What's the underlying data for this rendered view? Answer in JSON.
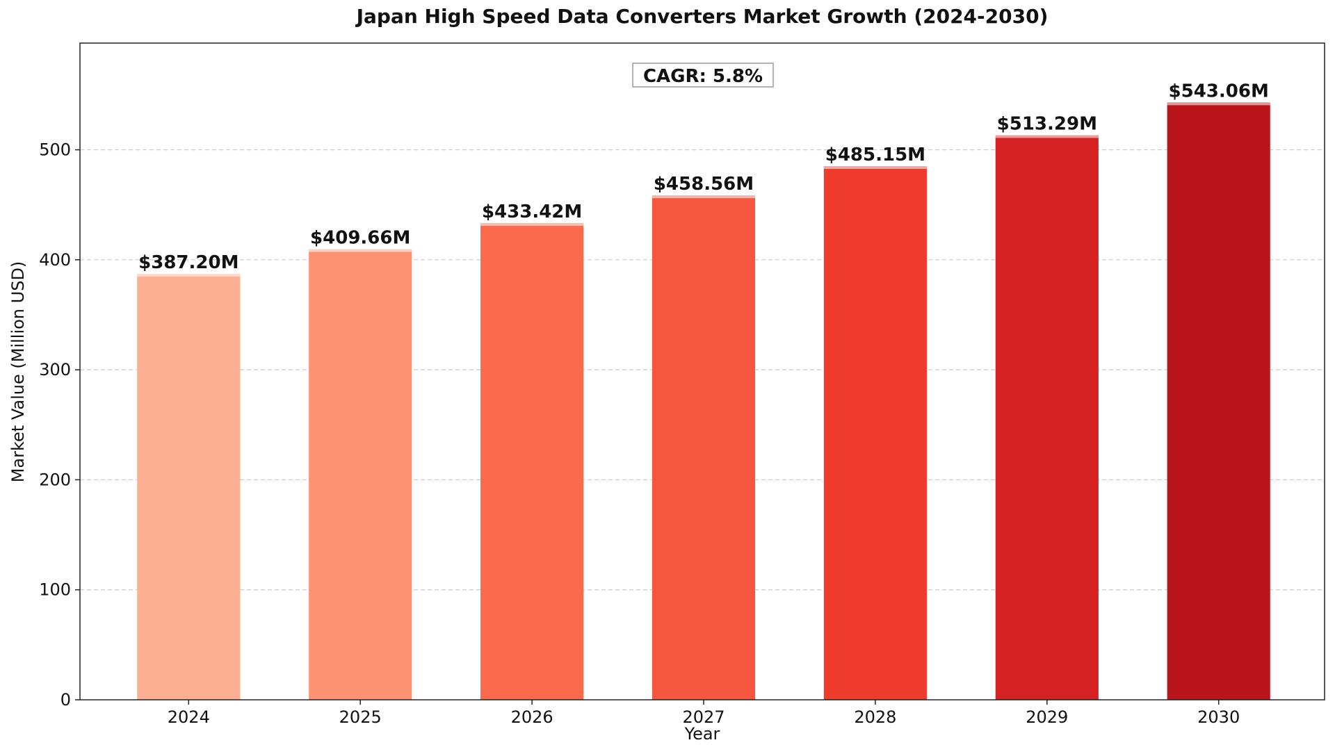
{
  "chart_data": {
    "type": "bar",
    "title": "Japan High Speed Data Converters Market Growth (2024-2030)",
    "xlabel": "Year",
    "ylabel": "Market Value (Million USD)",
    "categories": [
      "2024",
      "2025",
      "2026",
      "2027",
      "2028",
      "2029",
      "2030"
    ],
    "values": [
      387.2,
      409.66,
      433.42,
      458.56,
      485.15,
      513.29,
      543.06
    ],
    "data_labels": [
      "$387.20M",
      "$409.66M",
      "$433.42M",
      "$458.56M",
      "$485.15M",
      "$513.29M",
      "$543.06M"
    ],
    "bar_colors": [
      "#fcae91",
      "#fc9272",
      "#fb6a4a",
      "#f5573e",
      "#ef3b2c",
      "#d52121",
      "#bb151c"
    ],
    "ylim": [
      0,
      597
    ],
    "yticks": [
      0,
      100,
      200,
      300,
      400,
      500
    ],
    "grid": "y-dashed",
    "annotation": "CAGR: 5.8%"
  }
}
